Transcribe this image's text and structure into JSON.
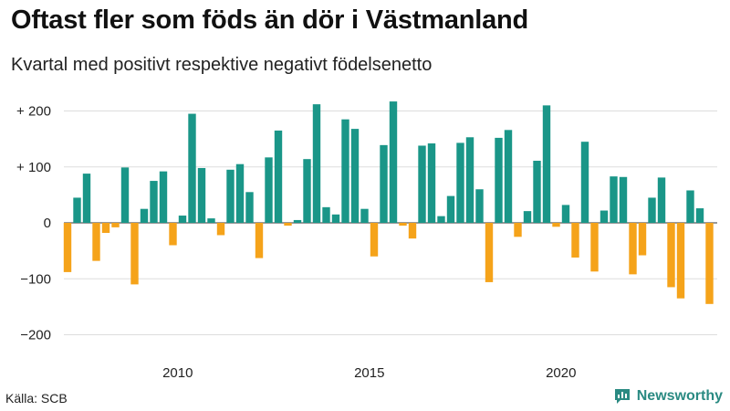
{
  "header": {
    "title": "Oftast fler som föds än dör i Västmanland",
    "subtitle": "Kvartal med positivt respektive negativt födelsenetto"
  },
  "footer": {
    "source": "Källa: SCB",
    "brand": "Newsworthy"
  },
  "colors": {
    "positive": "#1a9688",
    "negative": "#f5a31a",
    "grid": "#dddddd",
    "brand": "#2a8a82"
  },
  "chart_data": {
    "type": "bar",
    "ylim": [
      -200,
      200
    ],
    "y_ticks": [
      200,
      100,
      0,
      -100,
      -200
    ],
    "y_tick_labels": [
      "+ 200",
      "+ 100",
      "0",
      "−100",
      "−200"
    ],
    "x_start": "2007 Q1",
    "x_ticks": [
      {
        "label": "2010",
        "index": 12
      },
      {
        "label": "2015",
        "index": 32
      },
      {
        "label": "2020",
        "index": 52
      }
    ],
    "values": [
      -88,
      45,
      88,
      -68,
      -18,
      -8,
      99,
      -110,
      25,
      75,
      92,
      -40,
      13,
      195,
      98,
      8,
      -22,
      95,
      105,
      55,
      -63,
      117,
      165,
      -5,
      5,
      114,
      212,
      28,
      15,
      185,
      168,
      25,
      -60,
      139,
      217,
      -5,
      -28,
      138,
      142,
      12,
      48,
      143,
      153,
      60,
      -106,
      152,
      166,
      -25,
      21,
      111,
      210,
      -7,
      32,
      -62,
      145,
      -87,
      22,
      83,
      82,
      -92,
      -58,
      45,
      81,
      -115,
      -135,
      58,
      26,
      -145
    ]
  }
}
